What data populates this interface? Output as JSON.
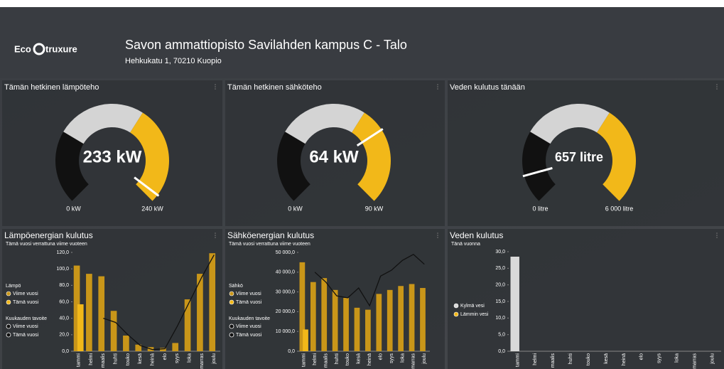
{
  "header": {
    "logo_prefix": "Eco",
    "logo_suffix": "truxure",
    "title": "Savon ammattiopisto Savilahden kampus C - Talo",
    "address": "Hehkukatu 1, 70210 Kuopio"
  },
  "chart_data": [
    {
      "type": "gauge",
      "title": "Tämän hetkinen lämpöteho",
      "value": 233,
      "value_label": "233 kW",
      "min": {
        "value": 0,
        "label": "0 kW"
      },
      "max": {
        "value": 240,
        "label": "240 kW"
      }
    },
    {
      "type": "gauge",
      "title": "Tämän hetkinen sähköteho",
      "value": 64,
      "value_label": "64 kW",
      "min": {
        "value": 0,
        "label": "0 kW"
      },
      "max": {
        "value": 90,
        "label": "90 kW"
      }
    },
    {
      "type": "gauge",
      "title": "Veden kulutus tänään",
      "value": 657,
      "value_label": "657 litre",
      "min": {
        "value": 0,
        "label": "0 litre"
      },
      "max": {
        "value": 6000,
        "label": "6 000 litre"
      }
    },
    {
      "type": "bar",
      "title": "Lämpöenergian kulutus",
      "subtitle": "Tämä vuosi verrattuna viime vuoteen",
      "categories": [
        "tammi",
        "helmi",
        "maalis",
        "huhti",
        "touko",
        "kesä",
        "heinä",
        "elo",
        "syys",
        "loka",
        "marras",
        "joulu"
      ],
      "legend_titles": [
        "Lämpö",
        "Kuukauden tavoite"
      ],
      "series": [
        {
          "name": "Viime vuosi",
          "kind": "bar",
          "color": "#c99619",
          "values": [
            104,
            94,
            91,
            49,
            19,
            8,
            5,
            4,
            10,
            63,
            94,
            119
          ]
        },
        {
          "name": "Tämä vuosi",
          "kind": "bar",
          "color": "#f2b819",
          "values": [
            57,
            null,
            null,
            null,
            null,
            null,
            null,
            null,
            null,
            null,
            null,
            null
          ]
        },
        {
          "name": "Viime vuosi",
          "kind": "line",
          "color": "#111111"
        },
        {
          "name": "Tämä vuosi",
          "kind": "line",
          "color": "#111111",
          "values": [
            null,
            null,
            40,
            35,
            20,
            7,
            2,
            3,
            30,
            60,
            90,
            117
          ]
        }
      ],
      "ylim": [
        0,
        120
      ],
      "yticks": [
        {
          "value": 0,
          "label": "0,0"
        },
        {
          "value": 20,
          "label": "20,0"
        },
        {
          "value": 40,
          "label": "40,0"
        },
        {
          "value": 60,
          "label": "60,0"
        },
        {
          "value": 80,
          "label": "80,0"
        },
        {
          "value": 100,
          "label": "100,0"
        },
        {
          "value": 120,
          "label": "120,0"
        }
      ]
    },
    {
      "type": "bar",
      "title": "Sähköenergian kulutus",
      "subtitle": "Tämä vuosi verrattuna viime vuoteen",
      "categories": [
        "tammi",
        "helmi",
        "maalis",
        "huhti",
        "touko",
        "kesä",
        "heinä",
        "elo",
        "syys",
        "loka",
        "marras",
        "joulu"
      ],
      "legend_titles": [
        "Sähkö",
        "Kuukauden tavoite"
      ],
      "series": [
        {
          "name": "Viime vuosi",
          "kind": "bar",
          "color": "#c99619",
          "values": [
            45000,
            35000,
            37000,
            31000,
            27000,
            22000,
            21000,
            29000,
            31000,
            33000,
            34000,
            32000
          ]
        },
        {
          "name": "Tämä vuosi",
          "kind": "bar",
          "color": "#f2b819",
          "values": [
            11000,
            null,
            null,
            null,
            null,
            null,
            null,
            null,
            null,
            null,
            null,
            null
          ]
        },
        {
          "name": "Viime vuosi",
          "kind": "line",
          "color": "#111111"
        },
        {
          "name": "Tämä vuosi",
          "kind": "line",
          "color": "#111111",
          "values": [
            null,
            40000,
            35000,
            28000,
            27000,
            32000,
            23000,
            38000,
            41000,
            46000,
            49000,
            44000
          ]
        }
      ],
      "ylim": [
        0,
        50000
      ],
      "yticks": [
        {
          "value": 0,
          "label": "0,0"
        },
        {
          "value": 10000,
          "label": "10 000,0"
        },
        {
          "value": 20000,
          "label": "20 000,0"
        },
        {
          "value": 30000,
          "label": "30 000,0"
        },
        {
          "value": 40000,
          "label": "40 000,0"
        },
        {
          "value": 50000,
          "label": "50 000,0"
        }
      ]
    },
    {
      "type": "bar",
      "title": "Veden kulutus",
      "subtitle": "Tänä vuonna",
      "categories": [
        "tammi",
        "helmi",
        "maalis",
        "huhti",
        "touko",
        "kesä",
        "heinä",
        "elo",
        "syys",
        "loka",
        "marras",
        "joulu"
      ],
      "series": [
        {
          "name": "Kylmä vesi",
          "kind": "bar",
          "color": "#d9d9d9",
          "values": [
            28.5,
            null,
            null,
            null,
            null,
            null,
            null,
            null,
            null,
            null,
            null,
            null
          ]
        },
        {
          "name": "Lämmin vesi",
          "kind": "bar",
          "color": "#f2b819",
          "values": [
            null,
            null,
            null,
            null,
            null,
            null,
            null,
            null,
            null,
            null,
            null,
            null
          ]
        }
      ],
      "ylim": [
        0,
        30
      ],
      "yticks": [
        {
          "value": 0,
          "label": "0,0"
        },
        {
          "value": 5,
          "label": "5,0"
        },
        {
          "value": 10,
          "label": "10,0"
        },
        {
          "value": 15,
          "label": "15,0"
        },
        {
          "value": 20,
          "label": "20,0"
        },
        {
          "value": 25,
          "label": "25,0"
        },
        {
          "value": 30,
          "label": "30,0"
        }
      ]
    }
  ]
}
